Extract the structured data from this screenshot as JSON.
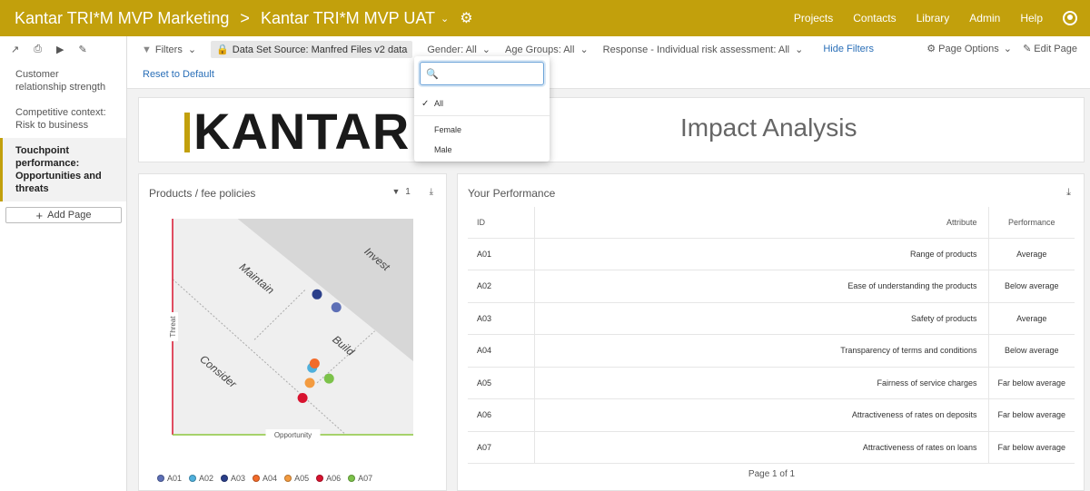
{
  "topbar": {
    "project": "Kantar TRI*M MVP Marketing",
    "separator": ">",
    "dataset": "Kantar TRI*M MVP UAT",
    "nav": [
      "Projects",
      "Contacts",
      "Library",
      "Admin",
      "Help"
    ]
  },
  "sidebar": {
    "items": [
      {
        "label": "Customer relationship strength"
      },
      {
        "label": "Competitive context: Risk to business"
      },
      {
        "label": "Touchpoint performance: Opportunities and threats"
      }
    ],
    "add_page_label": "Add Page"
  },
  "filterbar": {
    "filters_label": "Filters",
    "data_source": "Data Set Source: Manfred Files v2 data",
    "gender": "Gender: All",
    "age_groups": "Age Groups: All",
    "response": "Response - Individual risk assessment: All",
    "hide_filters": "Hide Filters",
    "page_options": "Page Options",
    "edit_page": "Edit Page",
    "reset": "Reset to Default"
  },
  "header": {
    "logo_text": "KANTAR",
    "title": "Impact Analysis"
  },
  "dropdown": {
    "search_value": "",
    "options": [
      "All",
      "Female",
      "Male"
    ],
    "selected": "All"
  },
  "chart_panel": {
    "title": "Products / fee policies",
    "filter_count": "1"
  },
  "chart_data": {
    "type": "scatter",
    "xlabel": "Opportunity",
    "ylabel": "Threat",
    "xlim": [
      0,
      100
    ],
    "ylim": [
      0,
      100
    ],
    "zones": [
      "Invest",
      "Maintain",
      "Build",
      "Consider"
    ],
    "series": [
      {
        "name": "A01",
        "color": "#5d6fb6",
        "x": 68,
        "y": 59
      },
      {
        "name": "A02",
        "color": "#4fb0dc",
        "x": 58,
        "y": 31
      },
      {
        "name": "A03",
        "color": "#2b3f8a",
        "x": 60,
        "y": 65
      },
      {
        "name": "A04",
        "color": "#f36b2a",
        "x": 59,
        "y": 33
      },
      {
        "name": "A05",
        "color": "#f39b40",
        "x": 57,
        "y": 24
      },
      {
        "name": "A06",
        "color": "#d8132f",
        "x": 54,
        "y": 17
      },
      {
        "name": "A07",
        "color": "#7cc24a",
        "x": 65,
        "y": 26
      }
    ]
  },
  "table_panel": {
    "title": "Your Performance",
    "columns": [
      "ID",
      "Attribute",
      "Performance"
    ],
    "rows": [
      {
        "id": "A01",
        "attribute": "Range of products",
        "performance": "Average"
      },
      {
        "id": "A02",
        "attribute": "Ease of understanding the products",
        "performance": "Below average"
      },
      {
        "id": "A03",
        "attribute": "Safety of products",
        "performance": "Average"
      },
      {
        "id": "A04",
        "attribute": "Transparency of terms and conditions",
        "performance": "Below average"
      },
      {
        "id": "A05",
        "attribute": "Fairness of service charges",
        "performance": "Far below average"
      },
      {
        "id": "A06",
        "attribute": "Attractiveness of rates on deposits",
        "performance": "Far below average"
      },
      {
        "id": "A07",
        "attribute": "Attractiveness of rates on loans",
        "performance": "Far below average"
      }
    ],
    "pager": "Page 1 of 1"
  }
}
